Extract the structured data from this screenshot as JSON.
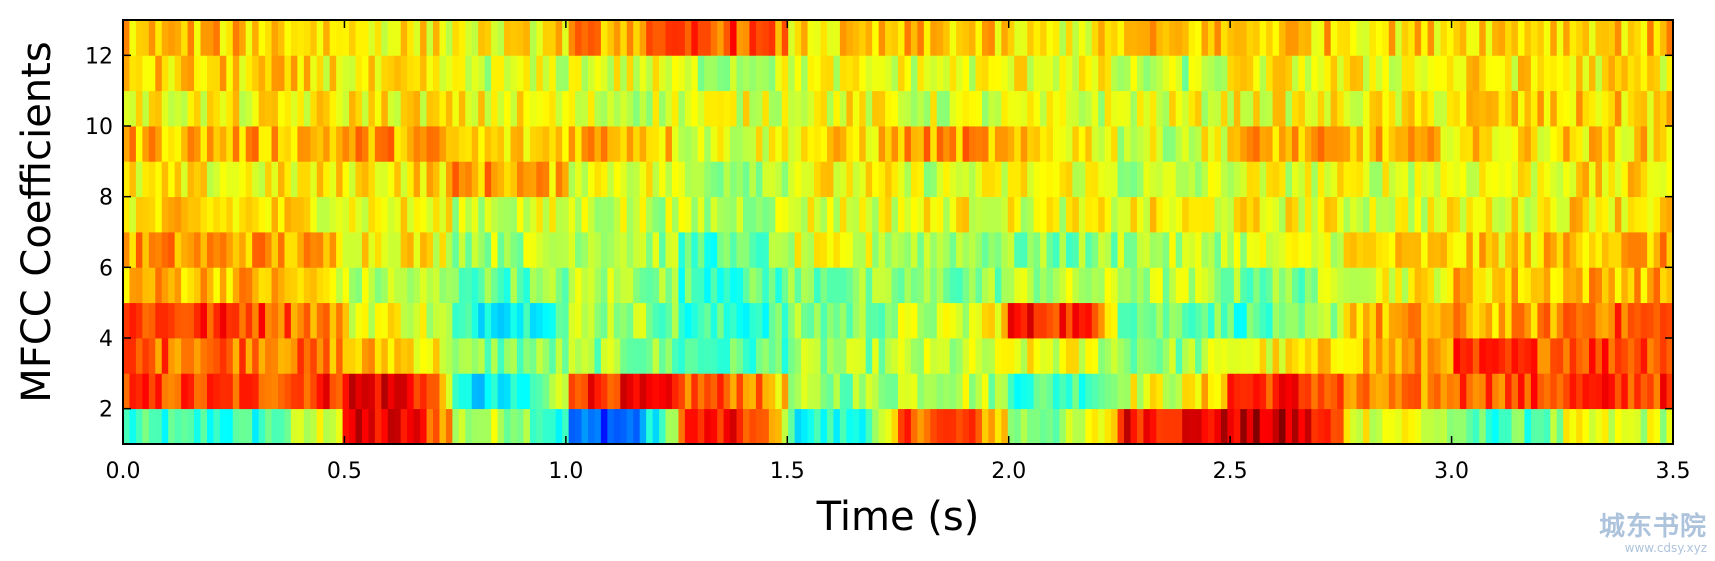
{
  "chart_data": {
    "type": "heatmap",
    "title": "",
    "xlabel": "Time (s)",
    "ylabel": "MFCC Coefficients",
    "xlim": [
      0.0,
      3.5
    ],
    "ylim": [
      1,
      13
    ],
    "x_ticks": [
      "0.0",
      "0.5",
      "1.0",
      "1.5",
      "2.0",
      "2.5",
      "3.0",
      "3.5"
    ],
    "y_ticks": [
      "2",
      "4",
      "6",
      "8",
      "10",
      "12"
    ],
    "colormap": "jet",
    "value_range": [
      0,
      1
    ],
    "grid": false,
    "rows_bottom_to_top": [
      "1-2",
      "2-3",
      "3-4",
      "4-5",
      "5-6",
      "6-7",
      "7-8",
      "8-9",
      "9-10",
      "10-11",
      "11-12",
      "12-13"
    ],
    "time_segments": [
      0.0,
      0.5,
      0.75,
      1.0,
      1.25,
      1.5,
      1.75,
      2.0,
      2.25,
      2.5,
      2.75,
      3.0,
      3.25,
      3.5
    ],
    "segment_values": [
      [
        0.42,
        0.88,
        0.55,
        0.22,
        0.84,
        0.4,
        0.8,
        0.52,
        0.88,
        0.92,
        0.62,
        0.45,
        0.58
      ],
      [
        0.8,
        0.9,
        0.35,
        0.85,
        0.78,
        0.52,
        0.58,
        0.45,
        0.6,
        0.84,
        0.72,
        0.8,
        0.82
      ],
      [
        0.78,
        0.68,
        0.5,
        0.52,
        0.45,
        0.52,
        0.55,
        0.6,
        0.52,
        0.62,
        0.7,
        0.8,
        0.82
      ],
      [
        0.82,
        0.62,
        0.4,
        0.55,
        0.42,
        0.5,
        0.56,
        0.85,
        0.5,
        0.45,
        0.7,
        0.7,
        0.78
      ],
      [
        0.7,
        0.55,
        0.48,
        0.55,
        0.45,
        0.5,
        0.5,
        0.55,
        0.55,
        0.5,
        0.62,
        0.68,
        0.7
      ],
      [
        0.72,
        0.65,
        0.55,
        0.58,
        0.45,
        0.58,
        0.55,
        0.5,
        0.55,
        0.58,
        0.65,
        0.66,
        0.7
      ],
      [
        0.65,
        0.62,
        0.58,
        0.58,
        0.55,
        0.6,
        0.62,
        0.6,
        0.62,
        0.62,
        0.6,
        0.62,
        0.66
      ],
      [
        0.62,
        0.65,
        0.72,
        0.62,
        0.55,
        0.62,
        0.58,
        0.62,
        0.55,
        0.6,
        0.6,
        0.62,
        0.64
      ],
      [
        0.7,
        0.72,
        0.65,
        0.72,
        0.6,
        0.65,
        0.72,
        0.65,
        0.58,
        0.7,
        0.68,
        0.65,
        0.66
      ],
      [
        0.62,
        0.64,
        0.62,
        0.58,
        0.6,
        0.62,
        0.58,
        0.58,
        0.6,
        0.62,
        0.62,
        0.66,
        0.66
      ],
      [
        0.66,
        0.62,
        0.58,
        0.6,
        0.56,
        0.6,
        0.6,
        0.62,
        0.55,
        0.62,
        0.62,
        0.64,
        0.64
      ],
      [
        0.68,
        0.64,
        0.62,
        0.72,
        0.8,
        0.65,
        0.68,
        0.62,
        0.68,
        0.68,
        0.66,
        0.68,
        0.68
      ]
    ]
  },
  "watermark": {
    "main": "城东书院",
    "sub": "www.cdsy.xyz"
  }
}
